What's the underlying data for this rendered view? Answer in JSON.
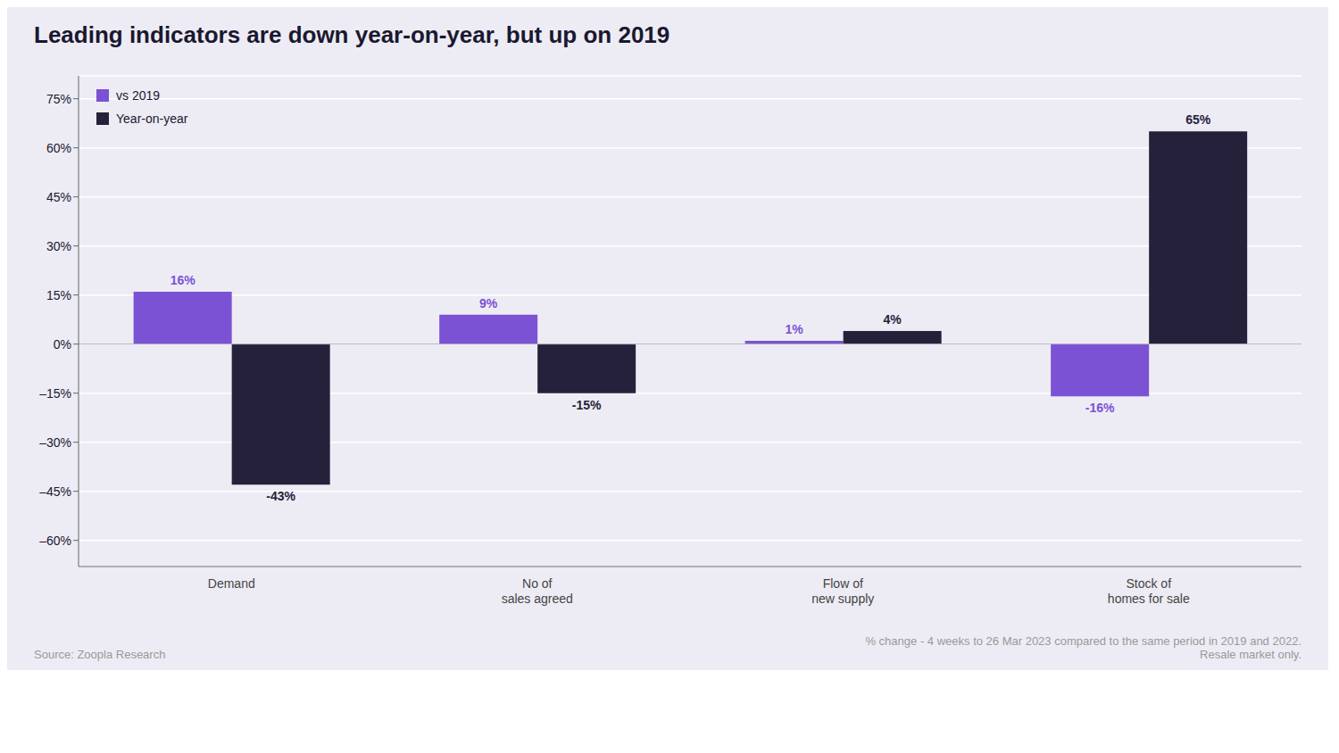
{
  "chart_data": {
    "type": "bar",
    "title": "Leading indicators are down year-on-year, but up on 2019",
    "categories": [
      "Demand",
      "No of\nsales agreed",
      "Flow of\nnew supply",
      "Stock of\nhomes for sale"
    ],
    "series": [
      {
        "name": "vs 2019",
        "color": "#7B52D4",
        "values": [
          16,
          9,
          1,
          -16
        ],
        "value_labels": [
          "16%",
          "9%",
          "1%",
          "-16%"
        ]
      },
      {
        "name": "Year-on-year",
        "color": "#25213A",
        "values": [
          -43,
          -15,
          4,
          65
        ],
        "value_labels": [
          "-43%",
          "-15%",
          "4%",
          "65%"
        ]
      }
    ],
    "ylim": [
      -68,
      82
    ],
    "yticks": [
      {
        "value": -60,
        "label": "–60%"
      },
      {
        "value": -45,
        "label": "–45%"
      },
      {
        "value": -30,
        "label": "–30%"
      },
      {
        "value": -15,
        "label": "–15%"
      },
      {
        "value": 0,
        "label": "0%"
      },
      {
        "value": 15,
        "label": "15%"
      },
      {
        "value": 30,
        "label": "30%"
      },
      {
        "value": 45,
        "label": "45%"
      },
      {
        "value": 60,
        "label": "60%"
      },
      {
        "value": 75,
        "label": "75%"
      }
    ],
    "grid": true,
    "legend": "upper left",
    "data_labels": true,
    "annotations": [
      "Source: Zoopla Research",
      "% change - 4 weeks to 26 Mar 2023 compared to the same period in 2019 and 2022.\nResale market only."
    ]
  }
}
